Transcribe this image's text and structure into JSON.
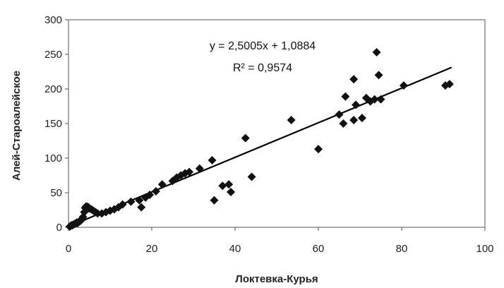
{
  "chart_data": {
    "type": "scatter",
    "title": "",
    "xlabel": "Локтевка-Курья",
    "ylabel": "Алей-Староалейское",
    "xlim": [
      0,
      100
    ],
    "ylim": [
      0,
      300
    ],
    "x_ticks": [
      "0",
      "20",
      "40",
      "60",
      "80",
      "100"
    ],
    "y_ticks": [
      "0",
      "50",
      "100",
      "150",
      "200",
      "250",
      "300"
    ],
    "grid": false,
    "legend": "none",
    "marker_color": "#111111",
    "series": [
      {
        "points": [
          [
            0.3,
            1
          ],
          [
            0.5,
            2
          ],
          [
            0.8,
            3
          ],
          [
            1,
            3
          ],
          [
            1.2,
            4
          ],
          [
            1.5,
            5
          ],
          [
            1.8,
            6
          ],
          [
            2,
            7
          ],
          [
            2.2,
            6
          ],
          [
            2.5,
            8
          ],
          [
            2.8,
            9
          ],
          [
            3,
            10
          ],
          [
            3.2,
            12
          ],
          [
            3.5,
            15
          ],
          [
            3.8,
            22
          ],
          [
            4,
            28
          ],
          [
            4.2,
            30
          ],
          [
            4.5,
            30
          ],
          [
            4.8,
            29
          ],
          [
            5,
            27
          ],
          [
            5.5,
            26
          ],
          [
            6,
            24
          ],
          [
            6.5,
            22
          ],
          [
            7,
            20
          ],
          [
            8,
            20
          ],
          [
            9,
            22
          ],
          [
            10,
            24
          ],
          [
            11,
            26
          ],
          [
            12,
            29
          ],
          [
            13,
            33
          ],
          [
            15,
            37
          ],
          [
            17,
            39
          ],
          [
            17.5,
            29
          ],
          [
            18.5,
            43
          ],
          [
            19.5,
            47
          ],
          [
            21,
            52
          ],
          [
            22.5,
            62
          ],
          [
            25,
            67
          ],
          [
            26,
            72
          ],
          [
            27,
            75
          ],
          [
            28,
            78
          ],
          [
            29,
            80
          ],
          [
            31.5,
            85
          ],
          [
            34.5,
            97
          ],
          [
            35,
            39
          ],
          [
            37,
            60
          ],
          [
            38.5,
            62
          ],
          [
            39,
            51
          ],
          [
            42.5,
            129
          ],
          [
            44,
            73
          ],
          [
            53.5,
            155
          ],
          [
            60,
            113
          ],
          [
            65,
            163
          ],
          [
            66,
            150
          ],
          [
            66.5,
            189
          ],
          [
            68.5,
            155
          ],
          [
            68.5,
            214
          ],
          [
            69,
            177
          ],
          [
            70.5,
            158
          ],
          [
            71.5,
            187
          ],
          [
            72.5,
            182
          ],
          [
            73.5,
            185
          ],
          [
            74,
            253
          ],
          [
            74.5,
            220
          ],
          [
            75,
            185
          ],
          [
            80.5,
            205
          ],
          [
            90.5,
            205
          ],
          [
            91.5,
            207
          ]
        ]
      }
    ],
    "trendline": {
      "slope": 2.5005,
      "intercept": 1.0884,
      "x_range": [
        0,
        92
      ],
      "equation_text": "y = 2,5005x + 1,0884",
      "r2_text": "R² = 0,9574"
    }
  }
}
